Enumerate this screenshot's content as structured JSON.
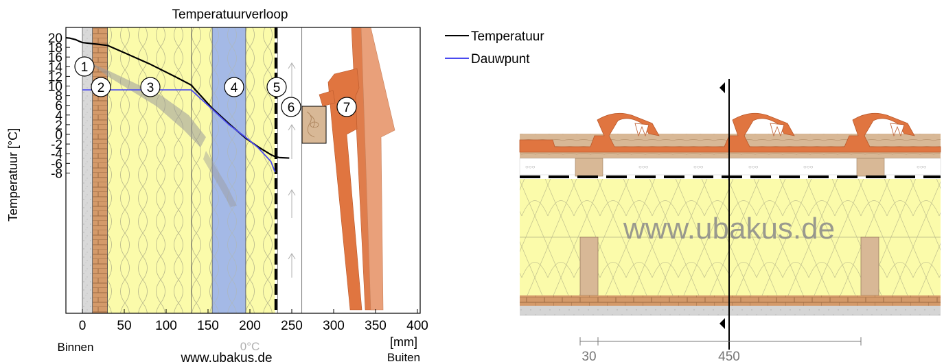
{
  "chart_data": {
    "type": "line",
    "title": "Temperatuurverloop",
    "ylabel": "Temperatuur [°C]",
    "xlabel": "[mm]",
    "xlim": [
      -20,
      400
    ],
    "ylim": [
      -8.5,
      21
    ],
    "x_ticks": [
      "0",
      "50",
      "100",
      "150",
      "200",
      "250",
      "300",
      "350",
      "400"
    ],
    "x_tick_values": [
      0,
      50,
      100,
      150,
      200,
      250,
      300,
      350,
      400
    ],
    "y_ticks": [
      "20",
      "18",
      "16",
      "14",
      "12",
      "10",
      "8",
      "6",
      "4",
      "2",
      "0",
      "-2",
      "-4",
      "-6",
      "-8"
    ],
    "y_tick_values": [
      20,
      18,
      16,
      14,
      12,
      10,
      8,
      6,
      4,
      2,
      0,
      -2,
      -4,
      -6,
      -8
    ],
    "left_label": "Binnen",
    "right_label": "Buiten",
    "zero_label": "0°C",
    "series": [
      {
        "name": "Temperatuur",
        "color": "#000000",
        "x": [
          -20,
          -15,
          -8,
          -3,
          0,
          10,
          30,
          50,
          80,
          110,
          130,
          135,
          155,
          175,
          195,
          210,
          225,
          230,
          235,
          247
        ],
        "y": [
          20,
          19.9,
          19.6,
          19.2,
          19.0,
          18.8,
          18.4,
          16.9,
          14.6,
          12.0,
          10.2,
          9.2,
          5.4,
          2.2,
          -0.8,
          -2.6,
          -4.2,
          -4.6,
          -4.8,
          -4.9
        ]
      },
      {
        "name": "Dauwpunt",
        "color": "#4a4af0",
        "x": [
          0,
          130,
          135,
          155,
          175,
          195,
          210,
          225,
          230
        ],
        "y": [
          9.2,
          9.2,
          8.4,
          5.2,
          2.0,
          -0.6,
          -2.8,
          -5.6,
          -7.8
        ]
      }
    ],
    "layer_labels": [
      "1",
      "2",
      "3",
      "4",
      "5",
      "6",
      "7"
    ],
    "layers": [
      {
        "name": "plaster",
        "x0": 0,
        "x1": 12,
        "color": "#d8d8d8"
      },
      {
        "name": "wood-board",
        "x0": 12,
        "x1": 30,
        "color": "#d7a47a"
      },
      {
        "name": "insulation-1",
        "x0": 30,
        "x1": 130,
        "color": "#fbfbaa"
      },
      {
        "name": "insulation-2",
        "x0": 130,
        "x1": 155,
        "color": "#fbfbaa"
      },
      {
        "name": "insulation-blue",
        "x0": 155,
        "x1": 195,
        "color": "#a4b9e6"
      },
      {
        "name": "insulation-3",
        "x0": 195,
        "x1": 230,
        "color": "#fbfbaa"
      },
      {
        "name": "air-gap",
        "x0": 233,
        "x1": 262,
        "color": "#ffffff"
      }
    ]
  },
  "watermarks": {
    "chart": "www.ubakus.de",
    "section": "www.ubakus.de"
  },
  "section": {
    "dimensions": [
      "30",
      "450"
    ]
  }
}
